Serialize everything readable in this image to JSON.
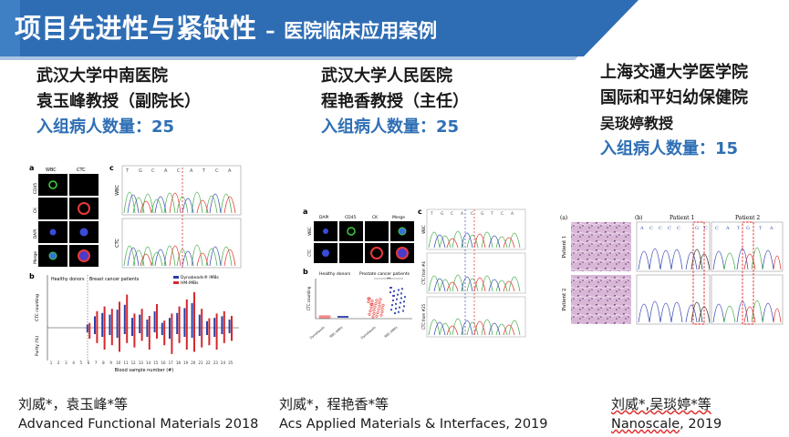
{
  "header": {
    "title": "项目先进性与紧缺性",
    "separator": "–",
    "subtitle": "医院临床应用案例"
  },
  "institutions": [
    {
      "hospital": "武汉大学中南医院",
      "professor": "袁玉峰教授（副院长）",
      "count_label": "入组病人数量：25"
    },
    {
      "hospital": "武汉大学人民医院",
      "professor": "程艳香教授（主任）",
      "count_label": "入组病人数量：25"
    },
    {
      "hospital_line1": "上海交通大学医学院",
      "hospital_line2": "国际和平妇幼保健院",
      "professor": "吴琰婷教授",
      "count_label": "入组病人数量：15"
    }
  ],
  "figures": {
    "fig1": {
      "panel_a": "a",
      "panel_b": "b",
      "panel_c": "c",
      "col_wbc": "WBC",
      "col_ctc": "CTC",
      "rows": [
        "CD45",
        "CK",
        "DAPI",
        "Merge"
      ],
      "c_wbc": "WBC",
      "c_ctc": "CTC",
      "seq": [
        "T",
        "G",
        "C",
        "A",
        "C",
        "A",
        "T",
        "C",
        "A"
      ],
      "legend_dyna": "Dynabeads® IMBs",
      "legend_hm": "HM-IMBs",
      "healthy": "Healthy donors",
      "breast": "Breast cancer patients",
      "ylabel_top": "CTC counting",
      "ylabel_bottom": "Purity (%)",
      "xlabel": "Blood sample number (#)",
      "xticks": [
        "1",
        "2",
        "3",
        "4",
        "5",
        "6",
        "7",
        "8",
        "9",
        "10",
        "11",
        "12",
        "13",
        "14",
        "15",
        "16",
        "17",
        "18",
        "19",
        "20",
        "21",
        "22",
        "23",
        "24",
        "25"
      ]
    },
    "fig2": {
      "panel_a": "a",
      "panel_b": "b",
      "panel_c": "c",
      "cols": [
        "DAPI",
        "CD45",
        "CK",
        "Merge"
      ],
      "rows": [
        "WBC",
        "CTC"
      ],
      "healthy": "Healthy donors",
      "prostate": "Prostate cancer patients",
      "ylabel": "CTC counting",
      "xcats": [
        "Dynabeads",
        "RBC-IMMs",
        "Dynabeads",
        "RBC-IMMs"
      ],
      "c_rows": [
        "WBC",
        "CTC from #4",
        "CTC from #25"
      ],
      "seq": [
        "T",
        "G",
        "C",
        "A",
        "C",
        "G",
        "T",
        "C",
        "A"
      ],
      "sig": "**"
    },
    "fig3": {
      "panel_a": "(a)",
      "panel_b": "(b)",
      "patient1": "Patient 1",
      "patient2": "Patient 2",
      "seq1": [
        "A",
        "C",
        "C",
        "C",
        "C",
        "G",
        "C"
      ],
      "seq2": [
        "C",
        "A",
        "T",
        "G",
        "T",
        "A"
      ]
    }
  },
  "citations": [
    {
      "authors": "刘威*，袁玉峰*等",
      "journal": "Advanced Functional Materials  2018"
    },
    {
      "authors": "刘威*，程艳香*等",
      "journal": "Acs Applied Materials & Interfaces, 2019"
    },
    {
      "authors": "刘威*,吴琰婷*等",
      "journal": "Nanoscale",
      "year": ", 2019"
    }
  ],
  "colors": {
    "banner": "#2e6db4",
    "banner_light": "#a9c4e4",
    "count_blue": "#2f6fb5",
    "dynabeads_blue": "#2b3fa8",
    "hm_red": "#d6282e"
  }
}
